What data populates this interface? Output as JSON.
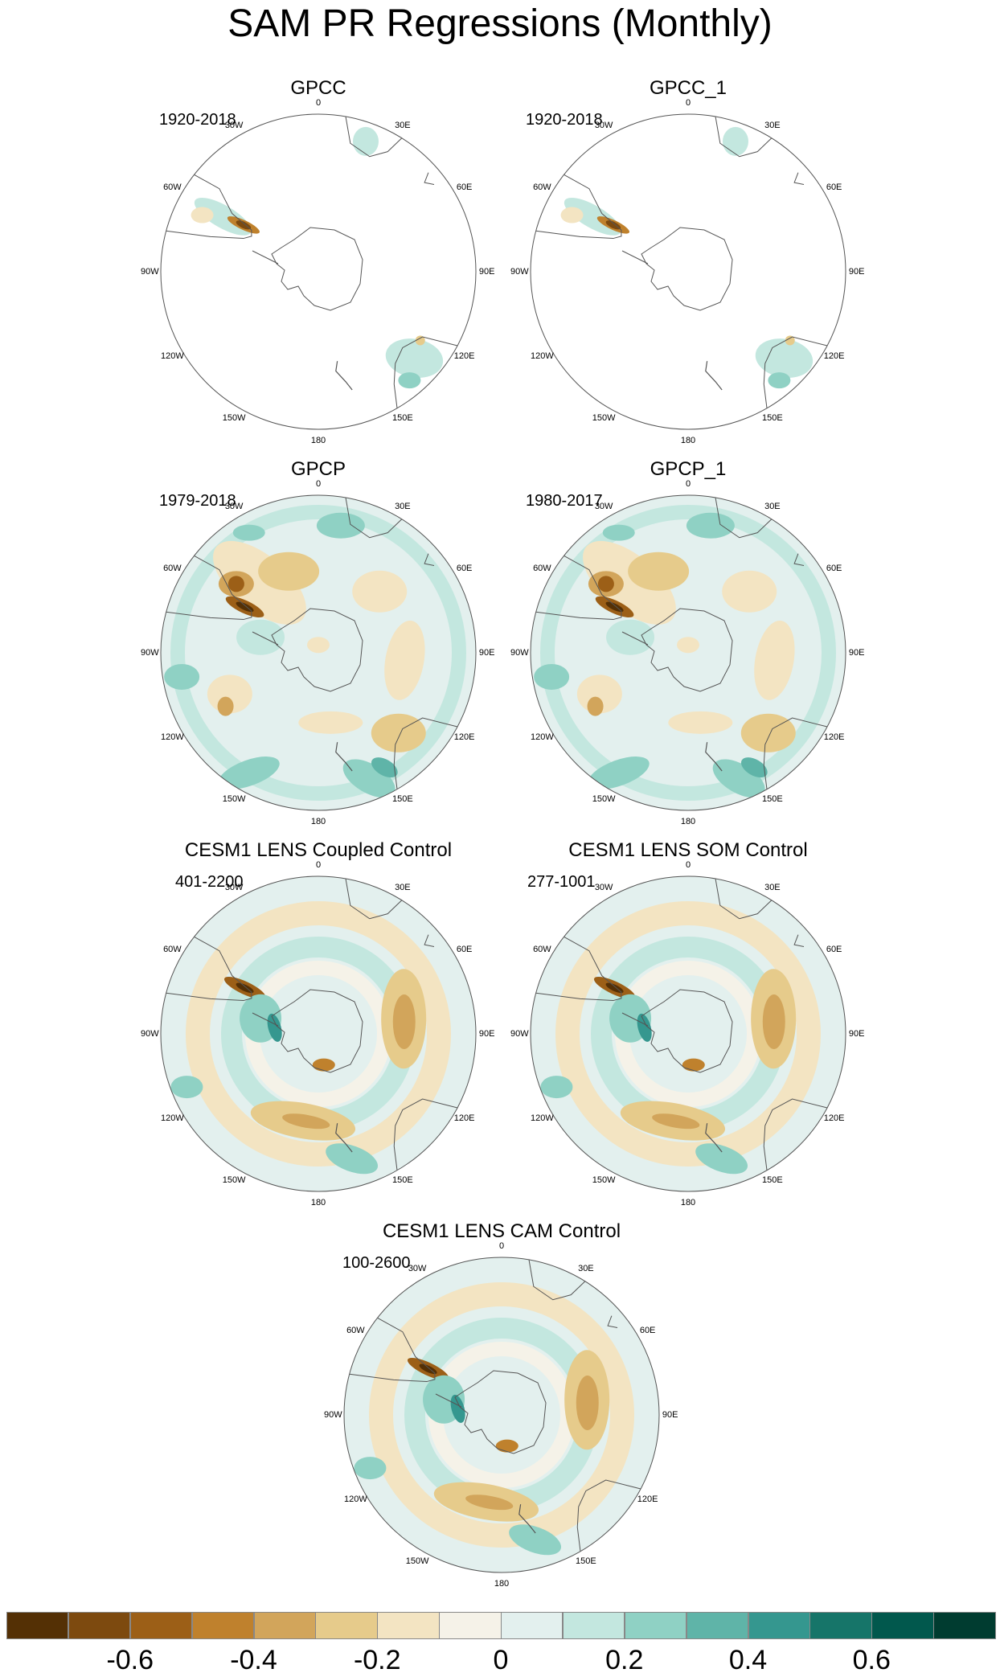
{
  "figure": {
    "title": "SAM PR Regressions (Monthly)"
  },
  "panels": [
    {
      "title": "GPCC",
      "period": "1920-2018",
      "field": "sparse"
    },
    {
      "title": "GPCC_1",
      "period": "1920-2018",
      "field": "sparse"
    },
    {
      "title": "GPCP",
      "period": "1979-2018",
      "field": "obs"
    },
    {
      "title": "GPCP_1",
      "period": "1980-2017",
      "field": "obs"
    },
    {
      "title": "CESM1 LENS Coupled Control",
      "period": "401-2200",
      "field": "model"
    },
    {
      "title": "CESM1 LENS SOM Control",
      "period": "277-1001",
      "field": "model"
    },
    {
      "title": "CESM1 LENS CAM Control",
      "period": "100-2600",
      "field": "model"
    }
  ],
  "longitude_labels": [
    "0",
    "30E",
    "60E",
    "90E",
    "120E",
    "150E",
    "180",
    "150W",
    "120W",
    "90W",
    "60W",
    "30W"
  ],
  "colorbar": {
    "colors": [
      "#543005",
      "#7d4a0f",
      "#9c5f17",
      "#bf812d",
      "#d2a55b",
      "#e6cb8b",
      "#f3e4c2",
      "#f5f2e8",
      "#e3f0ee",
      "#c3e7df",
      "#8fd1c4",
      "#5fb4a8",
      "#35978f",
      "#167569",
      "#01584d",
      "#003c30"
    ],
    "tick_labels": [
      "-0.6",
      "-0.4",
      "-0.2",
      "0",
      "0.2",
      "0.4",
      "0.6"
    ]
  }
}
